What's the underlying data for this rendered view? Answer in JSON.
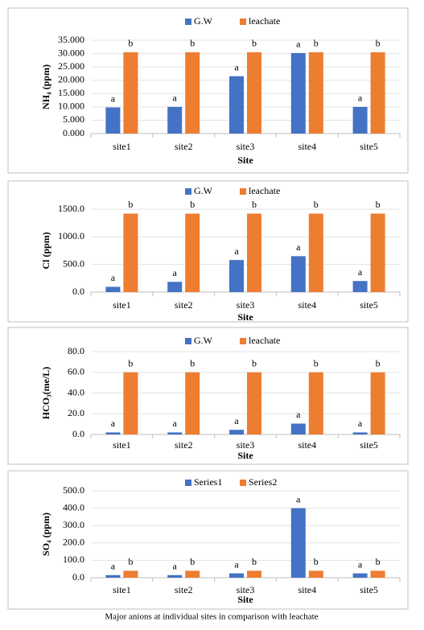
{
  "chart_data": [
    {
      "type": "bar",
      "ylabel": "NH₄ (ppm)",
      "xlabel": "Site",
      "categories": [
        "site1",
        "site2",
        "site3",
        "site4",
        "site5"
      ],
      "series": [
        {
          "name": "G.W",
          "color": "#4472c4",
          "values": [
            9.8,
            10,
            21.5,
            30.2,
            10
          ],
          "letters": [
            "a",
            "a",
            "a",
            "a",
            "a"
          ]
        },
        {
          "name": "leachate",
          "color": "#ed7d31",
          "values": [
            30.5,
            30.5,
            30.5,
            30.5,
            30.5
          ],
          "letters": [
            "b",
            "b",
            "b",
            "b",
            "b"
          ]
        }
      ],
      "ylim": [
        0,
        35
      ],
      "yticks": [
        {
          "value": 0,
          "label": "0.000"
        },
        {
          "value": 5,
          "label": "5.000"
        },
        {
          "value": 10,
          "label": "10.000"
        },
        {
          "value": 15,
          "label": "15.000"
        },
        {
          "value": 20,
          "label": "20.000"
        },
        {
          "value": 25,
          "label": "25.000"
        },
        {
          "value": 30,
          "label": "30.000"
        },
        {
          "value": 35,
          "label": "35.000"
        }
      ],
      "grid": true
    },
    {
      "type": "bar",
      "ylabel": "Cl (ppm)",
      "xlabel": "Site",
      "categories": [
        "site1",
        "site2",
        "site3",
        "site4",
        "site5"
      ],
      "series": [
        {
          "name": "G.W",
          "color": "#4472c4",
          "values": [
            95,
            185,
            580,
            650,
            200
          ],
          "letters": [
            "a",
            "a",
            "a",
            "a",
            "a"
          ]
        },
        {
          "name": "leachate",
          "color": "#ed7d31",
          "values": [
            1420,
            1420,
            1420,
            1420,
            1420
          ],
          "letters": [
            "b",
            "b",
            "b",
            "b",
            "b"
          ]
        }
      ],
      "ylim": [
        0,
        1500
      ],
      "yticks": [
        {
          "value": 0,
          "label": "0.0"
        },
        {
          "value": 500,
          "label": "500.0"
        },
        {
          "value": 1000,
          "label": "1000.0"
        },
        {
          "value": 1500,
          "label": "1500.0"
        }
      ],
      "grid": true
    },
    {
      "type": "bar",
      "ylabel": "HCO₃(me/L)",
      "xlabel": "Site",
      "categories": [
        "site1",
        "site2",
        "site3",
        "site4",
        "site5"
      ],
      "series": [
        {
          "name": "G.W",
          "color": "#4472c4",
          "values": [
            2,
            2,
            4.5,
            10.5,
            2
          ],
          "letters": [
            "a",
            "a",
            "a",
            "a",
            "a"
          ]
        },
        {
          "name": "leachate",
          "color": "#ed7d31",
          "values": [
            60,
            60,
            60,
            60,
            60
          ],
          "letters": [
            "b",
            "b",
            "b",
            "b",
            "b"
          ]
        }
      ],
      "ylim": [
        0,
        80
      ],
      "yticks": [
        {
          "value": 0,
          "label": "0.0"
        },
        {
          "value": 20,
          "label": "20.0"
        },
        {
          "value": 40,
          "label": "40.0"
        },
        {
          "value": 60,
          "label": "60.0"
        },
        {
          "value": 80,
          "label": "80.0"
        }
      ],
      "grid": true
    },
    {
      "type": "bar",
      "ylabel": "SO₄ (ppm)",
      "xlabel": "Site",
      "categories": [
        "site1",
        "site2",
        "site3",
        "site4",
        "site5"
      ],
      "series": [
        {
          "name": "Series1",
          "color": "#4472c4",
          "values": [
            15,
            15,
            25,
            400,
            25
          ],
          "letters": [
            "a",
            "a",
            "a",
            "a",
            "a"
          ]
        },
        {
          "name": "Series2",
          "color": "#ed7d31",
          "values": [
            40,
            40,
            40,
            40,
            40
          ],
          "letters": [
            "b",
            "b",
            "b",
            "b",
            "b"
          ]
        }
      ],
      "ylim": [
        0,
        500
      ],
      "yticks": [
        {
          "value": 0,
          "label": "0.0"
        },
        {
          "value": 100,
          "label": "100.0"
        },
        {
          "value": 200,
          "label": "200.0"
        },
        {
          "value": 300,
          "label": "300.0"
        },
        {
          "value": 400,
          "label": "400.0"
        },
        {
          "value": 500,
          "label": "500.0"
        }
      ],
      "grid": true
    }
  ],
  "caption": "Major anions at individual sites in comparison with leachate"
}
